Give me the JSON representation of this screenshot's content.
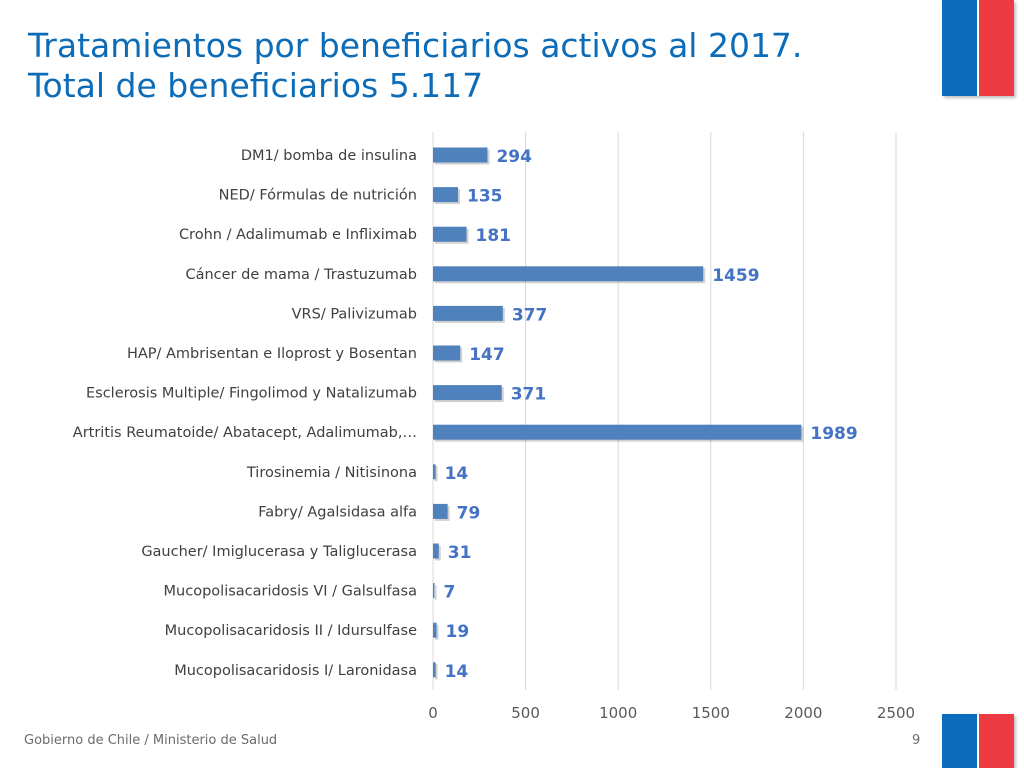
{
  "slide": {
    "title_line1": "Tratamientos por beneficiarios activos al 2017.",
    "title_line2": "Total de beneficiarios 5.117",
    "footer": "Gobierno de Chile / Ministerio de Salud",
    "page_number": "9"
  },
  "colors": {
    "title": "#0c6cb7",
    "bar": "#4f81bd",
    "label": "#4472c4",
    "flag_blue": "#0b6bbd",
    "flag_red": "#ee3a43"
  },
  "chart_data": {
    "type": "bar",
    "orientation": "horizontal",
    "categories": [
      "DM1/ bomba de insulina",
      "NED/ Fórmulas de nutrición",
      "Crohn / Adalimumab e Infliximab",
      "Cáncer de mama / Trastuzumab",
      "VRS/ Palivizumab",
      "HAP/ Ambrisentan e Iloprost y Bosentan",
      "Esclerosis Multiple/ Fingolimod y Natalizumab",
      "Artritis Reumatoide/ Abatacept, Adalimumab,…",
      "Tirosinemia / Nitisinona",
      "Fabry/ Agalsidasa alfa",
      "Gaucher/ Imiglucerasa y Taliglucerasa",
      "Mucopolisacaridosis VI / Galsulfasa",
      "Mucopolisacaridosis II / Idursulfase",
      "Mucopolisacaridosis I/ Laronidasa"
    ],
    "values": [
      294,
      135,
      181,
      1459,
      377,
      147,
      371,
      1989,
      14,
      79,
      31,
      7,
      19,
      14
    ],
    "data_labels": [
      "294",
      "135",
      "181",
      "1459",
      "377",
      "147",
      "371",
      "1989",
      "14",
      "79",
      "31",
      "7",
      "19",
      "14"
    ],
    "xlim": [
      0,
      2500
    ],
    "ticks": [
      0,
      500,
      1000,
      1500,
      2000,
      2500
    ],
    "tick_labels": [
      "0",
      "500",
      "1000",
      "1500",
      "2000",
      "2500"
    ],
    "grid": true,
    "legend": "none"
  }
}
